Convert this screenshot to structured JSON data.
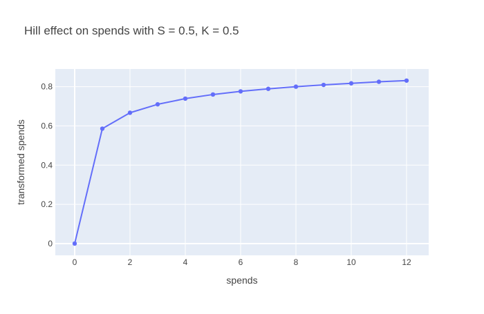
{
  "chart_data": {
    "type": "line",
    "title": "Hill effect on spends with S = 0.5, K = 0.5",
    "xlabel": "spends",
    "ylabel": "transformed spends",
    "x": [
      0,
      1,
      2,
      3,
      4,
      5,
      6,
      7,
      8,
      9,
      10,
      11,
      12
    ],
    "series": [
      {
        "values": [
          0,
          0.586,
          0.667,
          0.71,
          0.739,
          0.76,
          0.776,
          0.789,
          0.8,
          0.809,
          0.817,
          0.825,
          0.831
        ]
      }
    ],
    "xlim": [
      -0.7,
      12.8
    ],
    "ylim": [
      -0.06,
      0.89
    ],
    "xticks": [
      0,
      2,
      4,
      6,
      8,
      10,
      12
    ],
    "yticks": [
      0,
      0.2,
      0.4,
      0.6,
      0.8
    ],
    "xtick_labels": [
      "0",
      "2",
      "4",
      "6",
      "8",
      "10",
      "12"
    ],
    "ytick_labels": [
      "0",
      "0.2",
      "0.4",
      "0.6",
      "0.8"
    ],
    "grid": true,
    "legend": "none",
    "colors": {
      "line": "#636efa",
      "plot_bg": "#e5ecf6",
      "grid": "#ffffff",
      "text": "#444444",
      "title": "#444444"
    }
  }
}
